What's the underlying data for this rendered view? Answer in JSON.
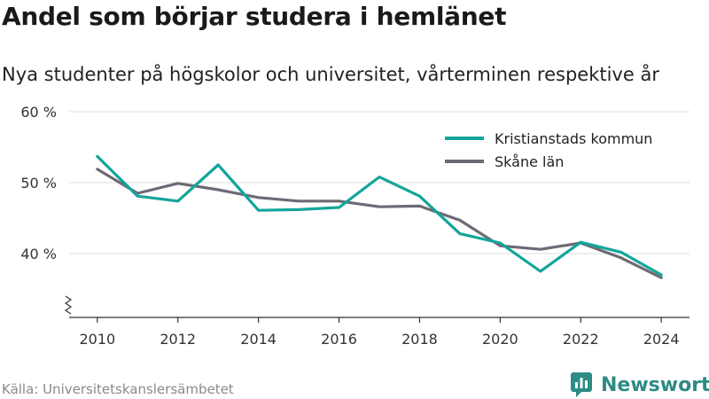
{
  "title": "Andel som börjar studera i hemlänet",
  "subtitle": "Nya studenter på högskolor och universitet, vårterminen respektive år",
  "source": "Källa: Universitetskanslersämbetet",
  "brand": "Newsworthy",
  "chart_data": {
    "type": "line",
    "x": [
      2010,
      2011,
      2012,
      2013,
      2014,
      2015,
      2016,
      2017,
      2018,
      2019,
      2020,
      2021,
      2022,
      2023,
      2024
    ],
    "x_ticks": [
      "2010",
      "2012",
      "2014",
      "2016",
      "2018",
      "2020",
      "2022",
      "2024"
    ],
    "y_ticks": [
      "60 %",
      "50 %",
      "40 %"
    ],
    "y_tick_values": [
      60,
      50,
      40
    ],
    "ylim": [
      31,
      61
    ],
    "xlim": [
      2009.3,
      2024.7
    ],
    "grid": true,
    "legend_position": "top-right",
    "series": [
      {
        "name": "Kristianstads kommun",
        "color": "#13a59a",
        "values": [
          53.7,
          48.1,
          47.4,
          52.5,
          46.1,
          46.2,
          46.5,
          50.8,
          48.1,
          42.8,
          41.5,
          37.5,
          41.6,
          40.2,
          37.0
        ]
      },
      {
        "name": "Skåne län",
        "color": "#6d6a75",
        "values": [
          51.9,
          48.5,
          49.9,
          49.0,
          47.9,
          47.4,
          47.4,
          46.6,
          46.7,
          44.7,
          41.1,
          40.6,
          41.5,
          39.4,
          36.6
        ]
      }
    ]
  }
}
